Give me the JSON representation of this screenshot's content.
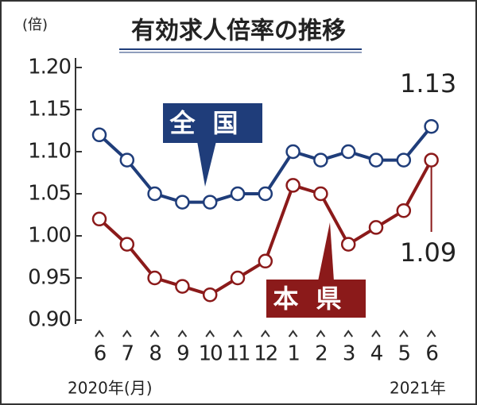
{
  "chart_data": {
    "type": "line",
    "title": "有効求人倍率の推移",
    "y_unit": "(倍)",
    "x_year_start": "2020年(月)",
    "x_year_end": "2021年",
    "categories": [
      "6",
      "7",
      "8",
      "9",
      "10",
      "11",
      "12",
      "1",
      "2",
      "3",
      "4",
      "5",
      "6"
    ],
    "series": [
      {
        "name": "全国",
        "color": "#1f3d7a",
        "values": [
          1.12,
          1.09,
          1.05,
          1.04,
          1.04,
          1.05,
          1.05,
          1.1,
          1.09,
          1.1,
          1.09,
          1.09,
          1.13
        ]
      },
      {
        "name": "本県",
        "color": "#8b1a1a",
        "values": [
          1.02,
          0.99,
          0.95,
          0.94,
          0.93,
          0.95,
          0.97,
          1.06,
          1.05,
          0.99,
          1.01,
          1.03,
          1.09
        ]
      }
    ],
    "ylim": [
      0.9,
      1.2
    ],
    "yticks": [
      {
        "value": 0.9,
        "label": "0.90"
      },
      {
        "value": 0.95,
        "label": "0.95"
      },
      {
        "value": 1.0,
        "label": "1.00"
      },
      {
        "value": 1.05,
        "label": "1.05"
      },
      {
        "value": 1.1,
        "label": "1.10"
      },
      {
        "value": 1.15,
        "label": "1.15"
      },
      {
        "value": 1.2,
        "label": "1.20"
      }
    ]
  }
}
